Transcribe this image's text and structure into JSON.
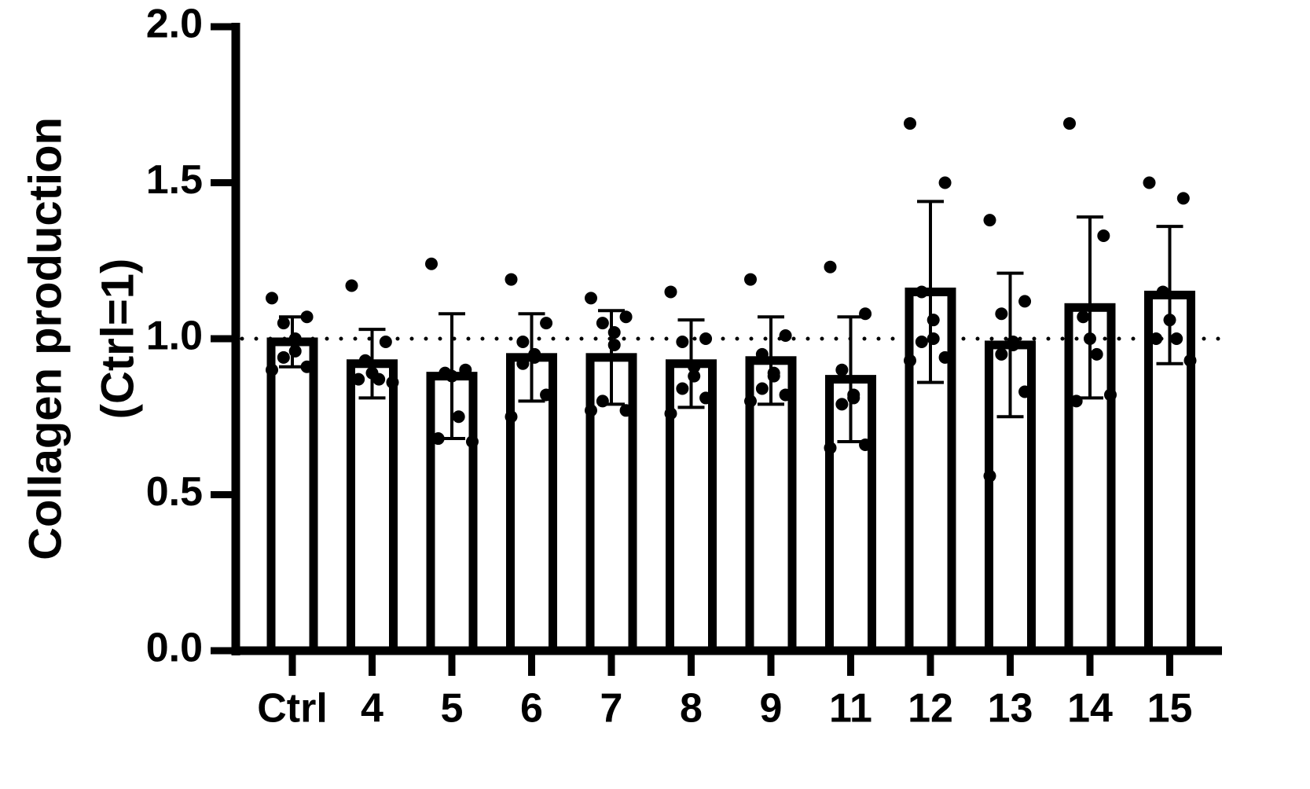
{
  "chart_data": {
    "type": "bar",
    "ylabel": [
      "Collagen production",
      "(Ctrl=1)"
    ],
    "xlabel": "",
    "ylim": [
      0,
      2
    ],
    "yticks": [
      0,
      0.5,
      1,
      1.5,
      2
    ],
    "ytick_labels": [
      "0.0",
      "0.5",
      "1.0",
      "1.5",
      "2.0"
    ],
    "reference_line": 1.0,
    "grid": false,
    "categories": [
      "Ctrl",
      "4",
      "5",
      "6",
      "7",
      "8",
      "9",
      "11",
      "12",
      "13",
      "14",
      "15"
    ],
    "values": [
      0.99,
      0.92,
      0.88,
      0.94,
      0.94,
      0.92,
      0.93,
      0.87,
      1.15,
      0.98,
      1.1,
      1.14
    ],
    "errors": [
      0.08,
      0.11,
      0.2,
      0.14,
      0.15,
      0.14,
      0.14,
      0.2,
      0.29,
      0.23,
      0.29,
      0.22
    ],
    "points": [
      [
        1.13,
        1.07,
        1.05,
        1.0,
        0.96,
        0.94,
        0.91,
        0.9
      ],
      [
        1.17,
        0.99,
        0.93,
        0.89,
        0.87,
        0.87,
        0.86
      ],
      [
        1.24,
        0.9,
        0.89,
        0.88,
        0.75,
        0.68,
        0.67
      ],
      [
        1.19,
        1.05,
        0.99,
        0.95,
        0.94,
        0.92,
        0.82,
        0.75
      ],
      [
        1.13,
        1.07,
        1.05,
        1.02,
        0.98,
        0.8,
        0.77,
        0.77
      ],
      [
        1.15,
        1.0,
        0.99,
        0.91,
        0.88,
        0.84,
        0.81,
        0.76
      ],
      [
        1.19,
        1.01,
        0.95,
        0.89,
        0.88,
        0.84,
        0.82,
        0.8
      ],
      [
        1.23,
        1.08,
        0.9,
        0.82,
        0.81,
        0.79,
        0.66,
        0.65
      ],
      [
        1.69,
        1.5,
        1.15,
        1.06,
        1.0,
        0.99,
        0.94,
        0.93
      ],
      [
        1.38,
        1.12,
        1.08,
        0.99,
        0.98,
        0.95,
        0.83,
        0.56
      ],
      [
        1.69,
        1.33,
        1.07,
        1.0,
        0.95,
        0.8,
        0.82
      ],
      [
        1.5,
        1.45,
        1.15,
        1.06,
        1.0,
        1.0,
        0.93
      ]
    ]
  }
}
